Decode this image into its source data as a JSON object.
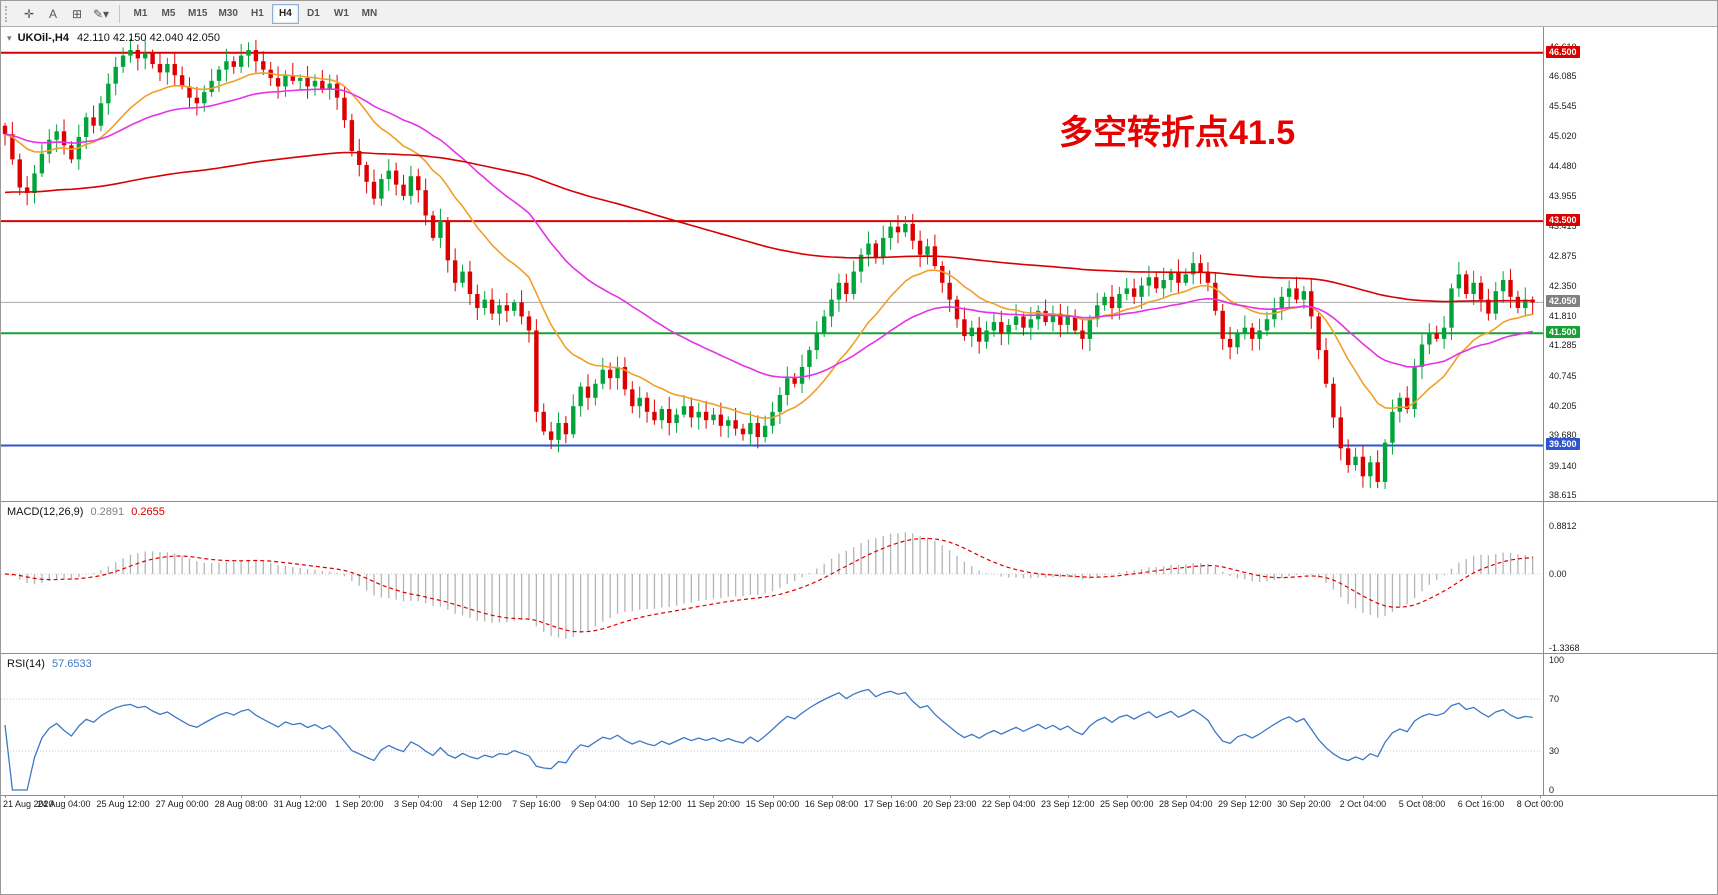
{
  "toolbar": {
    "icons": [
      {
        "name": "crosshair-icon",
        "glyph": "✛"
      },
      {
        "name": "text-label-icon",
        "glyph": "A"
      },
      {
        "name": "text-frame-icon",
        "glyph": "⊞"
      },
      {
        "name": "draw-tools-icon",
        "glyph": "✎▾"
      }
    ],
    "timeframes": [
      "M1",
      "M5",
      "M15",
      "M30",
      "H1",
      "H4",
      "D1",
      "W1",
      "MN"
    ],
    "active_timeframe": "H4"
  },
  "main_chart": {
    "symbol_title": "UKOil-,H4",
    "ohlc": "42.110 42.150 42.040 42.050",
    "collapse_arrow": "▾",
    "annotation": {
      "text": "多空转折点41.5",
      "color": "#e60000"
    },
    "price_ticks": [
      "46.610",
      "46.085",
      "45.545",
      "45.020",
      "44.480",
      "43.955",
      "43.415",
      "42.875",
      "42.350",
      "41.810",
      "41.285",
      "40.745",
      "40.205",
      "39.680",
      "39.140",
      "38.615"
    ],
    "badges": [
      {
        "value": "46.500",
        "price": 46.5,
        "color": "#d80000"
      },
      {
        "value": "43.500",
        "price": 43.5,
        "color": "#d80000"
      },
      {
        "value": "42.050",
        "price": 42.05,
        "color": "#808080"
      },
      {
        "value": "41.500",
        "price": 41.5,
        "color": "#18a035"
      },
      {
        "value": "39.500",
        "price": 39.5,
        "color": "#2f54d0"
      }
    ]
  },
  "chart_data": {
    "type": "candlestick",
    "symbol": "UKOil-",
    "timeframe": "H4",
    "ylim": [
      38.51,
      46.96
    ],
    "bars_per_label": 8,
    "first_open": 45.2,
    "current_price": 42.05,
    "up_color": "#00a43b",
    "down_color": "#dd0000",
    "hlines": [
      {
        "price": 46.5,
        "color": "#d80000"
      },
      {
        "price": 43.5,
        "color": "#d80000"
      },
      {
        "price": 41.5,
        "color": "#18a035"
      },
      {
        "price": 39.5,
        "color": "#2f54d0"
      }
    ],
    "moving_averages": [
      {
        "name": "fast",
        "period": 16,
        "color": "#f0a028"
      },
      {
        "name": "medium",
        "period": 40,
        "color": "#e632e6"
      },
      {
        "name": "slow",
        "period": 180,
        "color": "#d80000",
        "seed": 44.0
      }
    ],
    "closes": [
      45.05,
      44.6,
      44.1,
      44.0,
      44.35,
      44.7,
      44.95,
      45.1,
      44.85,
      44.6,
      45.0,
      45.35,
      45.2,
      45.6,
      45.95,
      46.25,
      46.45,
      46.55,
      46.4,
      46.5,
      46.3,
      46.15,
      46.3,
      46.1,
      45.9,
      45.7,
      45.6,
      45.8,
      46.0,
      46.2,
      46.35,
      46.25,
      46.45,
      46.55,
      46.35,
      46.2,
      46.05,
      45.9,
      46.1,
      46.0,
      46.05,
      45.9,
      46.0,
      45.85,
      45.95,
      45.7,
      45.3,
      44.75,
      44.5,
      44.2,
      43.9,
      44.25,
      44.4,
      44.15,
      43.95,
      44.3,
      44.05,
      43.6,
      43.2,
      43.5,
      42.8,
      42.4,
      42.6,
      42.2,
      41.95,
      42.1,
      41.85,
      42.0,
      41.9,
      42.05,
      41.8,
      41.55,
      40.1,
      39.75,
      39.6,
      39.9,
      39.7,
      40.2,
      40.55,
      40.35,
      40.6,
      40.85,
      40.7,
      40.9,
      40.5,
      40.2,
      40.35,
      40.1,
      39.95,
      40.15,
      39.9,
      40.05,
      40.2,
      40.0,
      40.1,
      39.95,
      40.05,
      39.85,
      39.95,
      39.8,
      39.7,
      39.9,
      39.65,
      39.85,
      40.1,
      40.4,
      40.7,
      40.6,
      40.9,
      41.2,
      41.5,
      41.8,
      42.1,
      42.4,
      42.2,
      42.6,
      42.9,
      43.1,
      42.85,
      43.2,
      43.4,
      43.3,
      43.45,
      43.15,
      42.9,
      43.05,
      42.7,
      42.4,
      42.1,
      41.75,
      41.45,
      41.6,
      41.35,
      41.55,
      41.7,
      41.5,
      41.65,
      41.8,
      41.6,
      41.75,
      41.9,
      41.7,
      41.85,
      41.65,
      41.8,
      41.55,
      41.4,
      41.75,
      42.0,
      42.15,
      41.95,
      42.2,
      42.3,
      42.15,
      42.35,
      42.5,
      42.3,
      42.45,
      42.6,
      42.4,
      42.55,
      42.75,
      42.6,
      42.4,
      41.9,
      41.4,
      41.25,
      41.5,
      41.6,
      41.4,
      41.55,
      41.75,
      41.95,
      42.15,
      42.3,
      42.1,
      42.25,
      41.8,
      41.2,
      40.6,
      40.0,
      39.45,
      39.15,
      39.3,
      38.95,
      39.2,
      38.85,
      39.55,
      40.1,
      40.35,
      40.15,
      40.9,
      41.3,
      41.5,
      41.4,
      41.6,
      42.3,
      42.55,
      42.2,
      42.4,
      42.1,
      41.85,
      42.25,
      42.45,
      42.15,
      41.95,
      42.1,
      42.05
    ]
  },
  "macd_panel": {
    "label": "MACD(12,26,9)",
    "value_main": "0.2891",
    "value_signal": "0.2655",
    "fast": 12,
    "slow": 26,
    "signal": 9,
    "histogram_color": "#b4b4b4",
    "signal_color": "#dd0000",
    "scale_labels": [
      {
        "text": "0.8812",
        "value": 0.8812
      },
      {
        "text": "0.00",
        "value": 0
      },
      {
        "text": "-1.3368",
        "value": -1.3368
      }
    ]
  },
  "rsi_panel": {
    "label": "RSI(14)",
    "value": "57.6533",
    "period": 14,
    "levels": [
      70,
      30
    ],
    "line_color": "#3c78c8",
    "scale_labels": [
      {
        "text": "100",
        "value": 100
      },
      {
        "text": "70",
        "value": 70
      },
      {
        "text": "30",
        "value": 30
      },
      {
        "text": "0",
        "value": 0
      }
    ]
  },
  "time_axis": {
    "labels": [
      "21 Aug 2020",
      "24 Aug 04:00",
      "25 Aug 12:00",
      "27 Aug 00:00",
      "28 Aug 08:00",
      "31 Aug 12:00",
      "1 Sep 20:00",
      "3 Sep 04:00",
      "4 Sep 12:00",
      "7 Sep 16:00",
      "9 Sep 04:00",
      "10 Sep 12:00",
      "11 Sep 20:00",
      "15 Sep 00:00",
      "16 Sep 08:00",
      "17 Sep 16:00",
      "20 Sep 23:00",
      "22 Sep 04:00",
      "23 Sep 12:00",
      "25 Sep 00:00",
      "28 Sep 04:00",
      "29 Sep 12:00",
      "30 Sep 20:00",
      "2 Oct 04:00",
      "5 Oct 08:00",
      "6 Oct 16:00",
      "8 Oct 00:00"
    ]
  }
}
